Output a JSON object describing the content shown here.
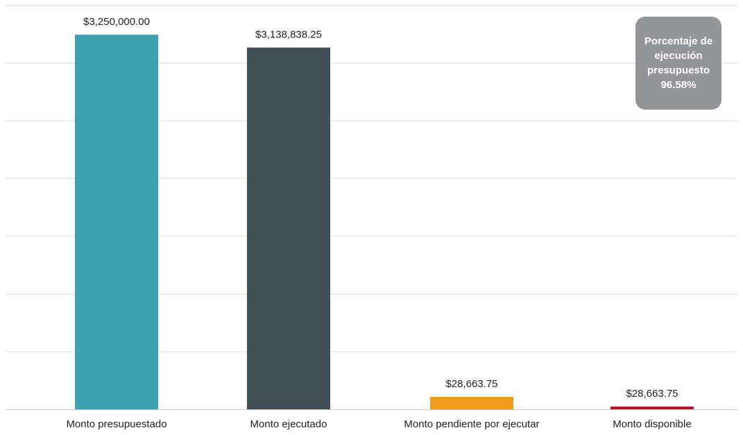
{
  "chart_data": {
    "type": "bar",
    "categories": [
      "Monto presupuestado",
      "Monto ejecutado",
      "Monto pendiente por ejecutar",
      "Monto disponible"
    ],
    "values": [
      3250000.0,
      3138838.25,
      28663.75,
      28663.75
    ],
    "value_labels": [
      "$3,250,000.00",
      "$3,138,838.25",
      "$28,663.75",
      "$28,663.75"
    ],
    "colors": [
      "#3ba3b0",
      "#434f57",
      "#f09a20",
      "#b5182b"
    ],
    "grid": true,
    "title": "",
    "xlabel": "",
    "ylabel": ""
  },
  "badge": {
    "line1": "Porcentaje de",
    "line2": "ejecución",
    "line3": "presupuesto",
    "line4": "96.58%"
  }
}
